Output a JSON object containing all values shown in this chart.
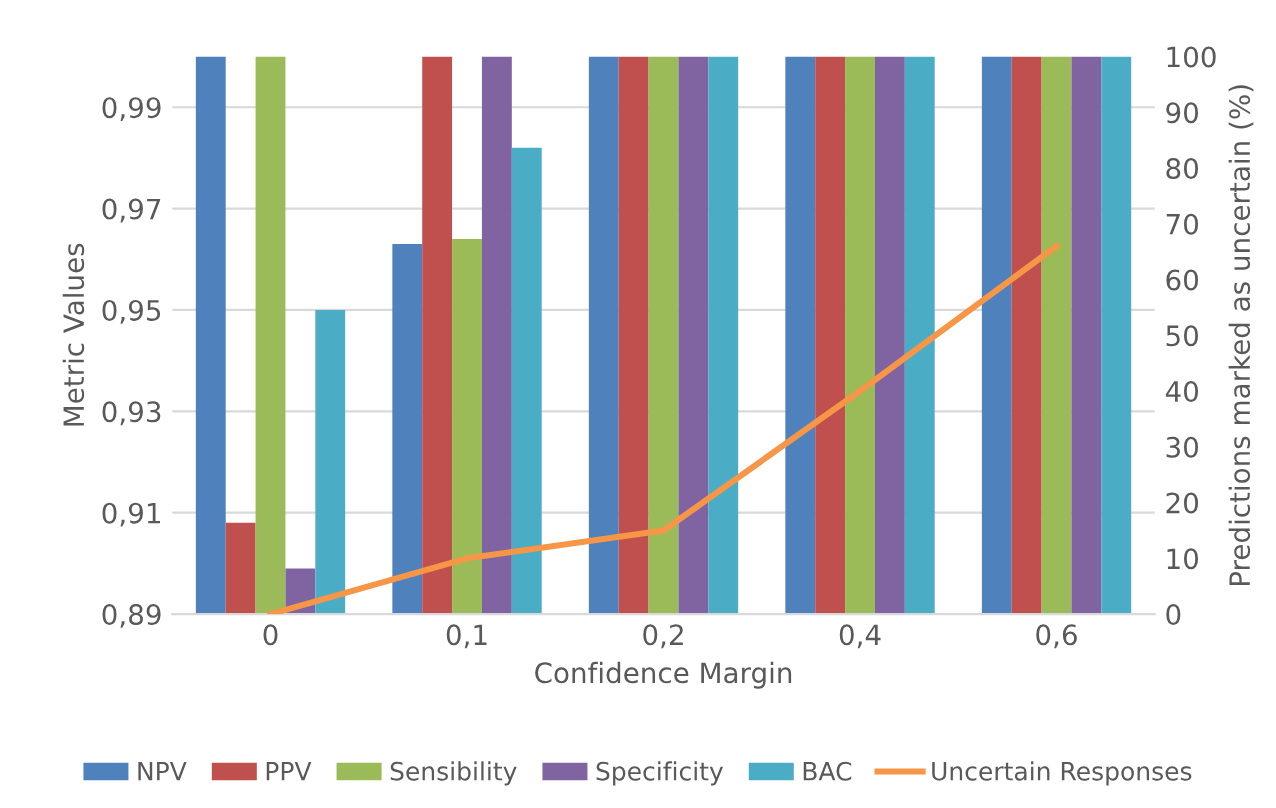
{
  "chart_data": {
    "type": "bar",
    "xlabel": "Confidence Margin",
    "ylabel": "Metric Values",
    "y2label": "Predictions marked as uncertain (%)",
    "categories": [
      "0",
      "0,1",
      "0,2",
      "0,4",
      "0,6"
    ],
    "series": [
      {
        "name": "NPV",
        "color": "#4f81bd",
        "values": [
          1.0,
          0.963,
          1.0,
          1.0,
          1.0
        ]
      },
      {
        "name": "PPV",
        "color": "#c0504d",
        "values": [
          0.908,
          1.0,
          1.0,
          1.0,
          1.0
        ]
      },
      {
        "name": "Sensibility",
        "color": "#9bbb59",
        "values": [
          1.0,
          0.964,
          1.0,
          1.0,
          1.0
        ]
      },
      {
        "name": "Specificity",
        "color": "#8064a2",
        "values": [
          0.899,
          1.0,
          1.0,
          1.0,
          1.0
        ]
      },
      {
        "name": "BAC",
        "color": "#4bacc6",
        "values": [
          0.95,
          0.982,
          1.0,
          1.0,
          1.0
        ]
      },
      {
        "name": "Uncertain Responses",
        "color": "#f79646",
        "type": "line",
        "axis": "y2",
        "values": [
          0,
          10,
          15,
          40,
          66
        ]
      }
    ],
    "ylim": [
      0.89,
      1.0
    ],
    "yticks": [
      {
        "value": 0.89,
        "label": "0,89"
      },
      {
        "value": 0.91,
        "label": "0,91"
      },
      {
        "value": 0.93,
        "label": "0,93"
      },
      {
        "value": 0.95,
        "label": "0,95"
      },
      {
        "value": 0.97,
        "label": "0,97"
      },
      {
        "value": 0.99,
        "label": "0,99"
      }
    ],
    "y2lim": [
      0,
      100
    ],
    "y2ticks": [
      0,
      10,
      20,
      30,
      40,
      50,
      60,
      70,
      80,
      90,
      100
    ],
    "grid": "y",
    "legend": "bottom",
    "marker": "none",
    "line_style": "solid"
  }
}
